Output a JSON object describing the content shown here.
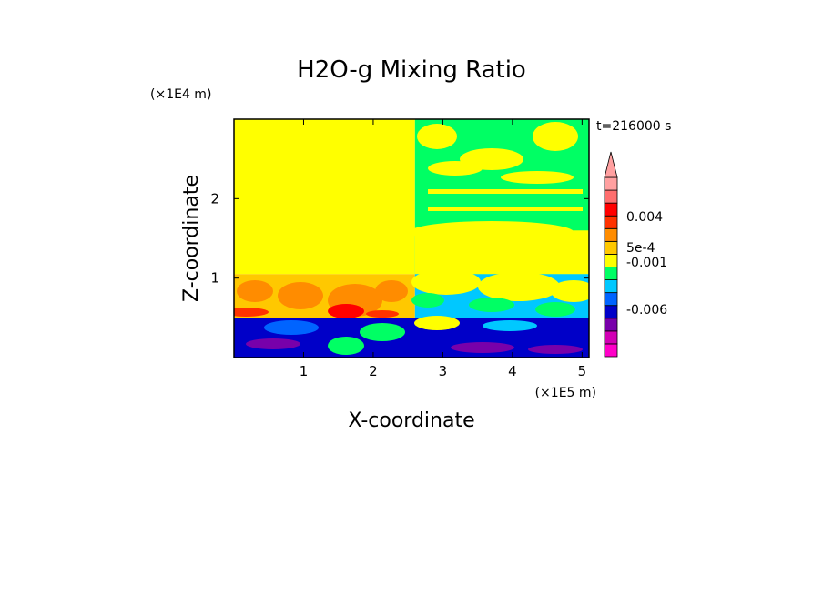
{
  "chart_data": {
    "type": "heatmap",
    "title": "H2O-g Mixing Ratio",
    "xlabel": "X-coordinate",
    "ylabel": "Z-coordinate",
    "x_multiplier": "(×1E5 m)",
    "y_multiplier": "(×1E4 m)",
    "time_label": "t=216000 s",
    "xlim": [
      0.0,
      5.1
    ],
    "ylim": [
      0.0,
      3.0
    ],
    "x_ticks": [
      1,
      2,
      3,
      4,
      5
    ],
    "y_ticks": [
      1,
      2
    ],
    "colorbar": {
      "colors": [
        "#ff00c8",
        "#d200b4",
        "#7800aa",
        "#0000c8",
        "#0064ff",
        "#00c8ff",
        "#00ff64",
        "#ffff00",
        "#ffc800",
        "#ff8c00",
        "#ff3200",
        "#ff0000",
        "#ff6e6e",
        "#ffa0a0"
      ],
      "labels": [
        "-0.006",
        "-0.001",
        "5e-4",
        "0.004"
      ],
      "extend": "max"
    },
    "fields": [
      {
        "x": [
          0.0,
          2.6
        ],
        "z": [
          1.05,
          3.0
        ],
        "color": "#ffff00"
      },
      {
        "x": [
          2.6,
          5.1
        ],
        "z": [
          1.05,
          3.0
        ],
        "color": "#00ff64"
      },
      {
        "x": [
          2.6,
          5.1
        ],
        "z": [
          1.05,
          1.6
        ],
        "color": "#ffff00"
      },
      {
        "x": [
          0.0,
          2.6
        ],
        "z": [
          0.5,
          1.05
        ],
        "color": "#ffc800"
      },
      {
        "x": [
          2.6,
          5.1
        ],
        "z": [
          0.5,
          1.05
        ],
        "color": "#00c8ff"
      },
      {
        "x": [
          0.0,
          5.1
        ],
        "z": [
          0.0,
          0.5
        ],
        "color": "#0000c8"
      }
    ]
  }
}
